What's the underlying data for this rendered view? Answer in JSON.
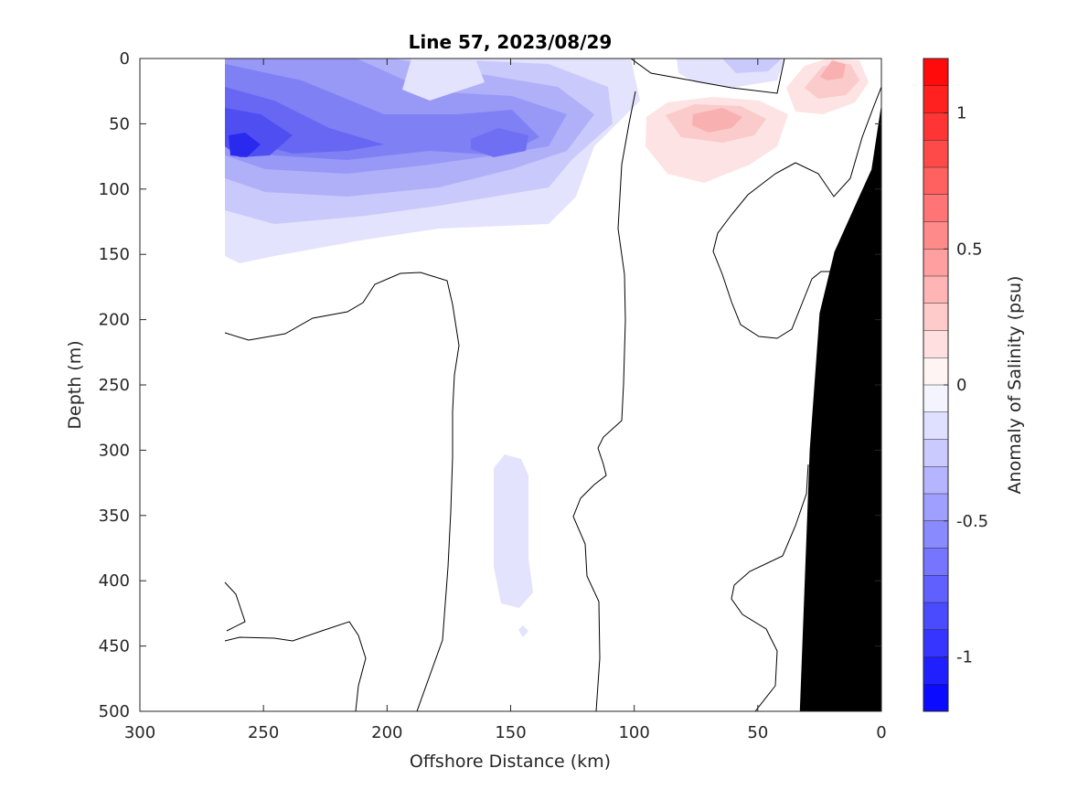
{
  "chart_data": {
    "type": "heatmap",
    "title": "Line 57, 2023/08/29",
    "xlabel": "Offshore Distance (km)",
    "ylabel": "Depth (m)",
    "xlim": [
      300,
      0
    ],
    "ylim": [
      500,
      0
    ],
    "x_reversed": true,
    "y_reversed": true,
    "xticks": [
      300,
      250,
      200,
      150,
      100,
      50,
      0
    ],
    "yticks": [
      0,
      50,
      100,
      150,
      200,
      250,
      300,
      350,
      400,
      450,
      500
    ],
    "grid": false,
    "colorbar": {
      "label": "Anomaly of Salinity (psu)",
      "range": [
        -1.2,
        1.2
      ],
      "levels": 24,
      "ticks": [
        -1,
        -0.5,
        0,
        0.5,
        1
      ],
      "tick_labels": [
        "-1",
        "-0.5",
        "0",
        "0.5",
        "1"
      ],
      "colormap": "blue-white-red",
      "negative_color": "#0000ff",
      "positive_color": "#ff0000",
      "zero_color": "#ffffff"
    },
    "bathymetry_color": "#000000",
    "bathymetry": [
      {
        "x": 33,
        "depth": 500
      },
      {
        "x": 31,
        "depth": 400
      },
      {
        "x": 29,
        "depth": 300
      },
      {
        "x": 25,
        "depth": 195
      },
      {
        "x": 19,
        "depth": 148
      },
      {
        "x": 10,
        "depth": 110
      },
      {
        "x": 4,
        "depth": 85
      },
      {
        "x": 0,
        "depth": 35
      }
    ],
    "fresh_core": [
      {
        "x": 257,
        "depth": 70,
        "anomaly": -1.0
      },
      {
        "x": 215,
        "depth": 60,
        "anomaly": -0.7
      },
      {
        "x": 155,
        "depth": 62,
        "anomaly": -0.6
      },
      {
        "x": 175,
        "depth": 20,
        "anomaly": -0.1
      },
      {
        "x": 145,
        "depth": 360,
        "anomaly": -0.1
      }
    ],
    "salty_core": [
      {
        "x": 65,
        "depth": 45,
        "anomaly": 0.3
      },
      {
        "x": 20,
        "depth": 12,
        "anomaly": 0.3
      }
    ]
  }
}
